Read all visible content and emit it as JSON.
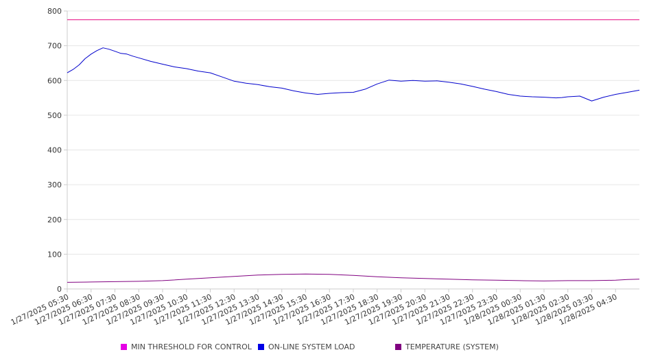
{
  "chart_data": {
    "type": "line",
    "title": "",
    "xlabel": "",
    "ylabel": "",
    "ylim": [
      0,
      800
    ],
    "yticks": [
      0,
      100,
      200,
      300,
      400,
      500,
      600,
      700,
      800
    ],
    "x_tick_labels": [
      "1/27/2025 05:30",
      "1/27/2025 06:30",
      "1/27/2025 07:30",
      "1/27/2025 08:30",
      "1/27/2025 09:30",
      "1/27/2025 10:30",
      "1/27/2025 11:30",
      "1/27/2025 12:30",
      "1/27/2025 13:30",
      "1/27/2025 14:30",
      "1/27/2025 15:30",
      "1/27/2025 16:30",
      "1/27/2025 17:30",
      "1/27/2025 18:30",
      "1/27/2025 19:30",
      "1/27/2025 20:30",
      "1/27/2025 21:30",
      "1/27/2025 22:30",
      "1/27/2025 23:30",
      "1/28/2025 00:30",
      "1/28/2025 01:30",
      "1/28/2025 02:30",
      "1/28/2025 03:30",
      "1/28/2025 04:30"
    ],
    "x_range_hours": [
      0,
      24
    ],
    "grid": true,
    "legend_position": "bottom",
    "series": [
      {
        "name": "MIN THRESHOLD FOR CONTROL",
        "color": "#e6007e",
        "x": [
          0,
          24
        ],
        "values": [
          775,
          775
        ]
      },
      {
        "name": "ON-LINE SYSTEM LOAD",
        "color": "#0000cc",
        "x": [
          0,
          0.25,
          0.5,
          0.75,
          1,
          1.25,
          1.5,
          1.75,
          2,
          2.25,
          2.5,
          2.75,
          3,
          3.5,
          4,
          4.25,
          4.5,
          5,
          5.5,
          6,
          6.5,
          7,
          7.5,
          8,
          8.5,
          9,
          9.5,
          10,
          10.5,
          11,
          11.5,
          12,
          12.5,
          13,
          13.5,
          14,
          14.5,
          15,
          15.5,
          16,
          16.5,
          17,
          17.5,
          18,
          18.5,
          19,
          19.5,
          20,
          20.5,
          20.75,
          21,
          21.5,
          22,
          22.5,
          23,
          23.5,
          24
        ],
        "values": [
          622,
          632,
          645,
          663,
          676,
          686,
          694,
          690,
          684,
          678,
          676,
          670,
          665,
          655,
          647,
          643,
          639,
          634,
          627,
          622,
          610,
          598,
          592,
          588,
          582,
          578,
          570,
          564,
          560,
          563,
          565,
          566,
          575,
          590,
          601,
          598,
          600,
          598,
          599,
          595,
          590,
          583,
          575,
          568,
          560,
          555,
          553,
          552,
          550,
          551,
          553,
          555,
          541,
          552,
          560,
          566,
          572
        ]
      },
      {
        "name": "TEMPERATURE (SYSTEM)",
        "color": "#800080",
        "x": [
          0,
          1,
          2,
          3,
          4,
          5,
          6,
          7,
          8,
          9,
          10,
          11,
          12,
          13,
          14,
          15,
          16,
          17,
          18,
          19,
          20,
          21,
          22,
          23,
          23.5,
          24
        ],
        "values": [
          19,
          20,
          21,
          22,
          24,
          28,
          32,
          36,
          40,
          42,
          43,
          42,
          39,
          35,
          32,
          30,
          28,
          26,
          25,
          24,
          23,
          24,
          24,
          25,
          27,
          28
        ]
      }
    ]
  }
}
